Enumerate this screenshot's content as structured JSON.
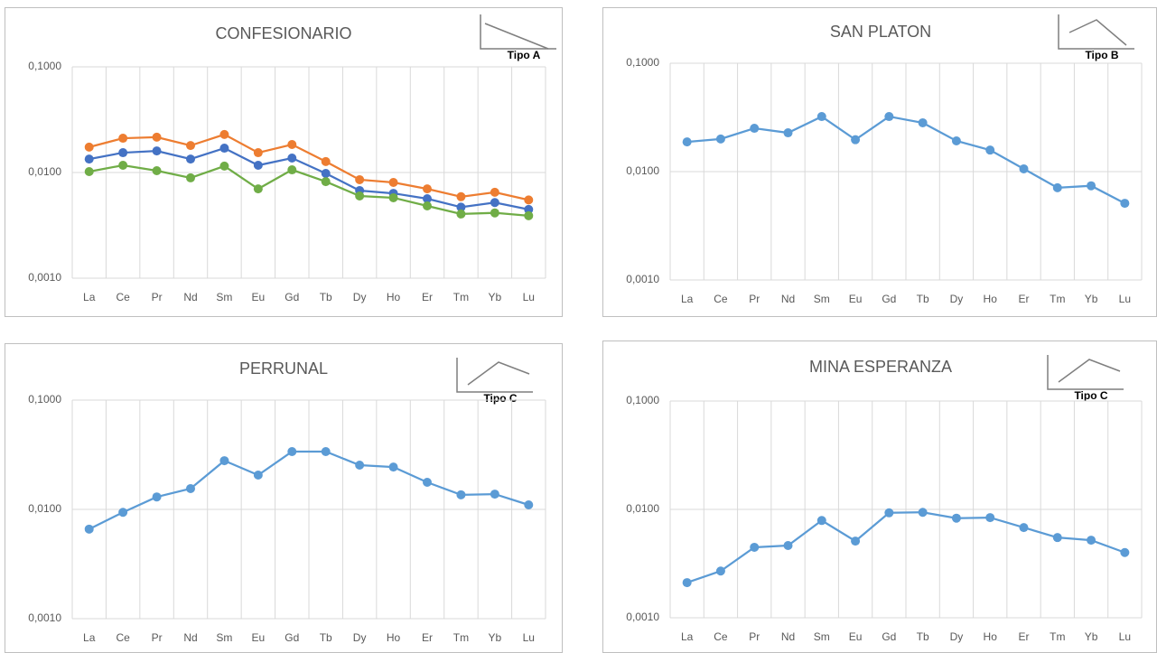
{
  "chart_data": [
    {
      "type": "line",
      "title": "CONFESIONARIO",
      "annotation": "Tipo A",
      "categories": [
        "La",
        "Ce",
        "Pr",
        "Nd",
        "Sm",
        "Eu",
        "Gd",
        "Tb",
        "Dy",
        "Ho",
        "Er",
        "Tm",
        "Yb",
        "Lu"
      ],
      "series": [
        {
          "color": "#ED7D31",
          "values": [
            0.0174,
            0.0211,
            0.0216,
            0.018,
            0.0229,
            0.0154,
            0.0184,
            0.0127,
            0.00855,
            0.00805,
            0.007,
            0.0059,
            0.0065,
            0.0055
          ]
        },
        {
          "color": "#4472C4",
          "values": [
            0.0134,
            0.0154,
            0.016,
            0.0134,
            0.017,
            0.0117,
            0.0137,
            0.0098,
            0.00675,
            0.00635,
            0.00565,
            0.0047,
            0.0052,
            0.00447
          ]
        },
        {
          "color": "#70AD47",
          "values": [
            0.0102,
            0.0117,
            0.0104,
            0.0089,
            0.0115,
            0.007,
            0.0106,
            0.0082,
            0.006,
            0.00577,
            0.00483,
            0.00405,
            0.00415,
            0.0039
          ]
        }
      ],
      "ylim": [
        0.001,
        0.1
      ],
      "log_scale": true,
      "grid": true,
      "yticks": [
        {
          "value": 0.001,
          "label": "0,0010"
        },
        {
          "value": 0.01,
          "label": "0,0100"
        },
        {
          "value": 0.1,
          "label": "0,1000"
        }
      ]
    },
    {
      "type": "line",
      "title": "SAN PLATON",
      "annotation": "Tipo B",
      "categories": [
        "La",
        "Ce",
        "Pr",
        "Nd",
        "Sm",
        "Eu",
        "Gd",
        "Tb",
        "Dy",
        "Ho",
        "Er",
        "Tm",
        "Yb",
        "Lu"
      ],
      "series": [
        {
          "color": "#5B9BD5",
          "values": [
            0.0188,
            0.02,
            0.0251,
            0.0228,
            0.0322,
            0.0197,
            0.0322,
            0.0282,
            0.0192,
            0.0158,
            0.0106,
            0.0071,
            0.0074,
            0.0051
          ]
        }
      ],
      "ylim": [
        0.001,
        0.1
      ],
      "log_scale": true,
      "grid": true,
      "yticks": [
        {
          "value": 0.001,
          "label": "0,0010"
        },
        {
          "value": 0.01,
          "label": "0,0100"
        },
        {
          "value": 0.1,
          "label": "0,1000"
        }
      ]
    },
    {
      "type": "line",
      "title": "PERRUNAL",
      "annotation": "Tipo C",
      "categories": [
        "La",
        "Ce",
        "Pr",
        "Nd",
        "Sm",
        "Eu",
        "Gd",
        "Tb",
        "Dy",
        "Ho",
        "Er",
        "Tm",
        "Yb",
        "Lu"
      ],
      "series": [
        {
          "color": "#5B9BD5",
          "values": [
            0.0066,
            0.0094,
            0.013,
            0.0155,
            0.0279,
            0.0206,
            0.0338,
            0.0338,
            0.0254,
            0.0244,
            0.0177,
            0.0136,
            0.0138,
            0.011
          ]
        }
      ],
      "ylim": [
        0.001,
        0.1
      ],
      "log_scale": true,
      "grid": true,
      "yticks": [
        {
          "value": 0.001,
          "label": "0,0010"
        },
        {
          "value": 0.01,
          "label": "0,0100"
        },
        {
          "value": 0.1,
          "label": "0,1000"
        }
      ]
    },
    {
      "type": "line",
      "title": "MINA ESPERANZA",
      "annotation": "Tipo C",
      "categories": [
        "La",
        "Ce",
        "Pr",
        "Nd",
        "Sm",
        "Eu",
        "Gd",
        "Tb",
        "Dy",
        "Ho",
        "Er",
        "Tm",
        "Yb",
        "Lu"
      ],
      "series": [
        {
          "color": "#5B9BD5",
          "values": [
            0.00211,
            0.0027,
            0.00447,
            0.00464,
            0.0079,
            0.0051,
            0.0093,
            0.0094,
            0.0083,
            0.0084,
            0.0068,
            0.0055,
            0.0052,
            0.004
          ]
        }
      ],
      "ylim": [
        0.001,
        0.1
      ],
      "log_scale": true,
      "grid": true,
      "yticks": [
        {
          "value": 0.001,
          "label": "0,0010"
        },
        {
          "value": 0.01,
          "label": "0,0100"
        },
        {
          "value": 0.1,
          "label": "0,1000"
        }
      ]
    }
  ]
}
